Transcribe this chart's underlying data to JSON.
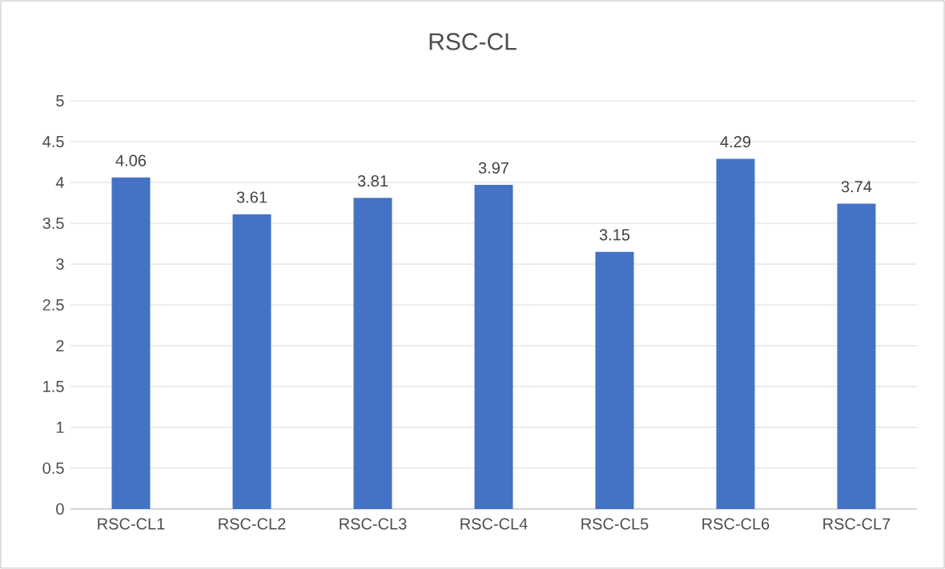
{
  "chart_data": {
    "type": "bar",
    "title": "RSC-CL",
    "categories": [
      "RSC-CL1",
      "RSC-CL2",
      "RSC-CL3",
      "RSC-CL4",
      "RSC-CL5",
      "RSC-CL6",
      "RSC-CL7"
    ],
    "values": [
      4.06,
      3.61,
      3.81,
      3.97,
      3.15,
      4.29,
      3.74
    ],
    "color": "#4472c4",
    "ylim": [
      0,
      5
    ],
    "yticks": [
      0,
      0.5,
      1,
      1.5,
      2,
      2.5,
      3,
      3.5,
      4,
      4.5,
      5
    ],
    "grid": "y",
    "data_labels": true
  }
}
